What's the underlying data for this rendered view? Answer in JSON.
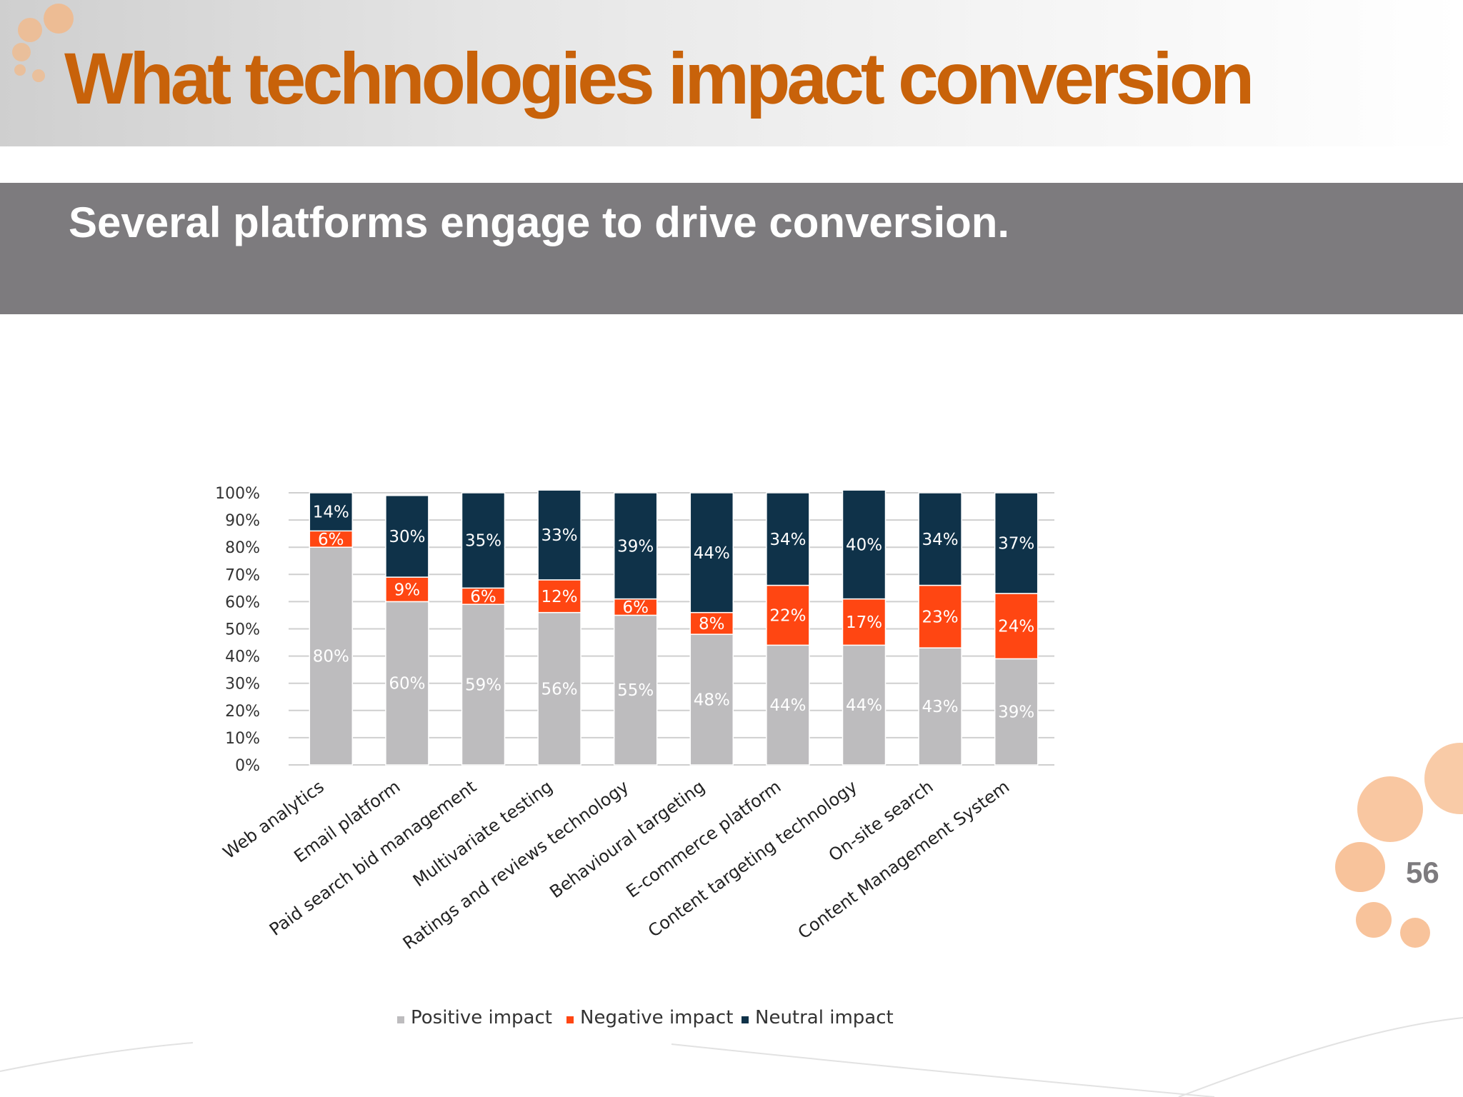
{
  "slide": {
    "title": "What technologies impact conversion",
    "subtitle": "Several platforms engage to drive conversion.",
    "page_number": "56",
    "colors": {
      "title": "#c8620a",
      "subtitle_band": "#7d7b7e",
      "decoration": "#f2a86a"
    }
  },
  "chart_data": {
    "type": "bar",
    "stacked": true,
    "percent_stacked": true,
    "title": "",
    "xlabel": "",
    "ylabel": "",
    "ylim": [
      0,
      100
    ],
    "yticks": [
      "0%",
      "10%",
      "20%",
      "30%",
      "40%",
      "50%",
      "60%",
      "70%",
      "80%",
      "90%",
      "100%"
    ],
    "grid": true,
    "legend_position": "bottom",
    "categories": [
      "Web analytics",
      "Email platform",
      "Paid search bid management",
      "Multivariate testing",
      "Ratings and reviews technology",
      "Behavioural targeting",
      "E-commerce platform",
      "Content targeting technology",
      "On-site search",
      "Content Management System"
    ],
    "series": [
      {
        "name": "Positive impact",
        "color": "#bdbcbe",
        "label_color": "#ffffff",
        "values": [
          80,
          60,
          59,
          56,
          55,
          48,
          44,
          44,
          43,
          39
        ],
        "labels": [
          "80%",
          "60%",
          "59%",
          "56%",
          "55%",
          "48%",
          "44%",
          "44%",
          "43%",
          "39%"
        ]
      },
      {
        "name": "Negative impact",
        "color": "#ff4612",
        "label_color": "#ffffff",
        "values": [
          6,
          9,
          6,
          12,
          6,
          8,
          22,
          17,
          23,
          24
        ],
        "labels": [
          "6%",
          "9%",
          "6%",
          "12%",
          "6%",
          "8%",
          "22%",
          "17%",
          "23%",
          "24%"
        ]
      },
      {
        "name": "Neutral impact",
        "color": "#0f3249",
        "label_color": "#ffffff",
        "values": [
          14,
          30,
          35,
          33,
          39,
          44,
          34,
          40,
          34,
          37
        ],
        "labels": [
          "14%",
          "30%",
          "35%",
          "33%",
          "39%",
          "44%",
          "34%",
          "40%",
          "34%",
          "37%"
        ]
      }
    ]
  }
}
